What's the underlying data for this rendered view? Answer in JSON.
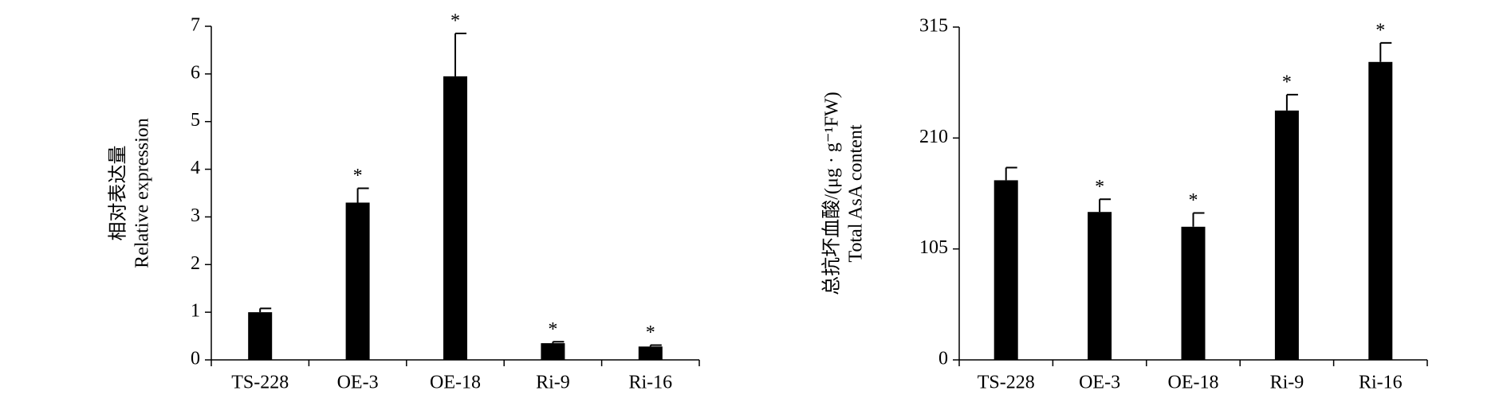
{
  "chart_data": [
    {
      "type": "bar",
      "ylabel": [
        "相对表达量",
        "Relative expression"
      ],
      "categories": [
        "TS-228",
        "OE-3",
        "OE-18",
        "Ri-9",
        "Ri-16"
      ],
      "values": [
        1.0,
        3.3,
        5.95,
        0.35,
        0.28
      ],
      "errors": [
        0.08,
        0.3,
        0.9,
        0.03,
        0.03
      ],
      "annotations": [
        null,
        "*",
        "*",
        "*",
        "*"
      ],
      "color": "#000000",
      "ylim": [
        0,
        7
      ],
      "yticks": [
        0,
        1,
        2,
        3,
        4,
        5,
        6,
        7
      ]
    },
    {
      "type": "bar",
      "ylabel": [
        "总抗坏血酸/(μg · g⁻¹FW)",
        "Total AsA content"
      ],
      "categories": [
        "TS-228",
        "OE-3",
        "OE-18",
        "Ri-9",
        "Ri-16"
      ],
      "values": [
        170,
        140,
        126,
        236,
        282
      ],
      "errors": [
        12,
        12,
        13,
        15,
        18
      ],
      "annotations": [
        null,
        "*",
        "*",
        "*",
        "*"
      ],
      "color": "#000000",
      "ylim": [
        0,
        315
      ],
      "yticks": [
        0,
        105,
        210,
        315
      ]
    }
  ]
}
